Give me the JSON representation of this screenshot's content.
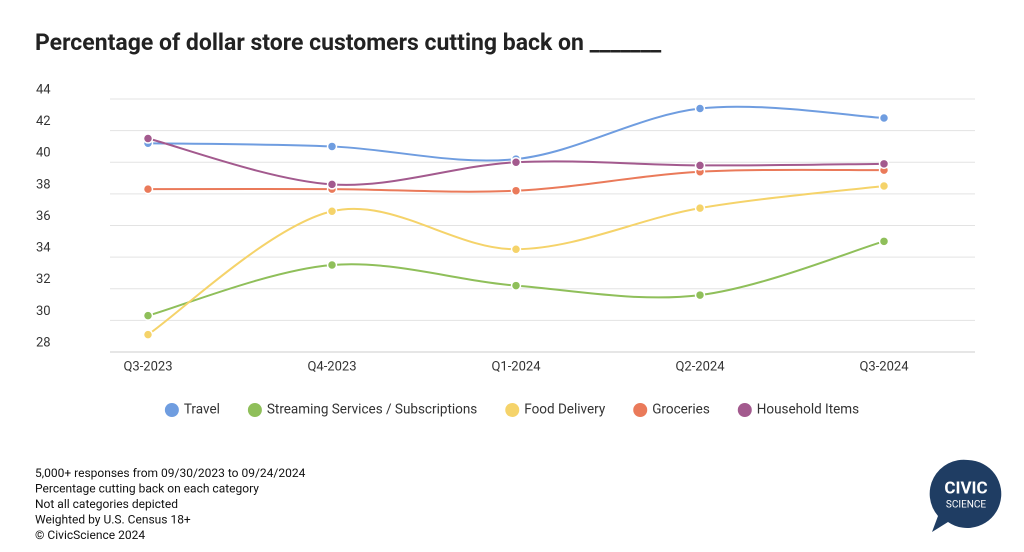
{
  "chart_data": {
    "type": "line",
    "title": "Percentage of dollar store customers cutting back on _______",
    "categories": [
      "Q3-2023",
      "Q4-2023",
      "Q1-2024",
      "Q2-2024",
      "Q3-2024"
    ],
    "series": [
      {
        "name": "Travel",
        "color": "#6f9de0",
        "values": [
          41.2,
          41.0,
          40.2,
          43.4,
          42.8
        ]
      },
      {
        "name": "Streaming Services / Subscriptions",
        "color": "#8fbf5a",
        "values": [
          30.3,
          33.5,
          32.2,
          31.6,
          35.0
        ]
      },
      {
        "name": "Food Delivery",
        "color": "#f5d36a",
        "values": [
          29.1,
          36.9,
          34.5,
          37.1,
          38.5
        ]
      },
      {
        "name": "Groceries",
        "color": "#ea7a5a",
        "values": [
          38.3,
          38.3,
          38.2,
          39.4,
          39.5
        ]
      },
      {
        "name": "Household Items",
        "color": "#a35a8e",
        "values": [
          41.5,
          38.6,
          40.0,
          39.8,
          39.9
        ]
      }
    ],
    "ylim": [
      28,
      44
    ],
    "yticks": [
      28,
      30,
      32,
      34,
      36,
      38,
      40,
      42,
      44
    ],
    "grid": true,
    "notes": [
      "5,000+ responses from 09/30/2023 to 09/24/2024",
      "Percentage cutting back on each category",
      "Not all categories depicted",
      "Weighted by U.S. Census 18+",
      "© CivicScience 2024"
    ],
    "logo": [
      "CIVIC",
      "SCIENCE"
    ]
  }
}
